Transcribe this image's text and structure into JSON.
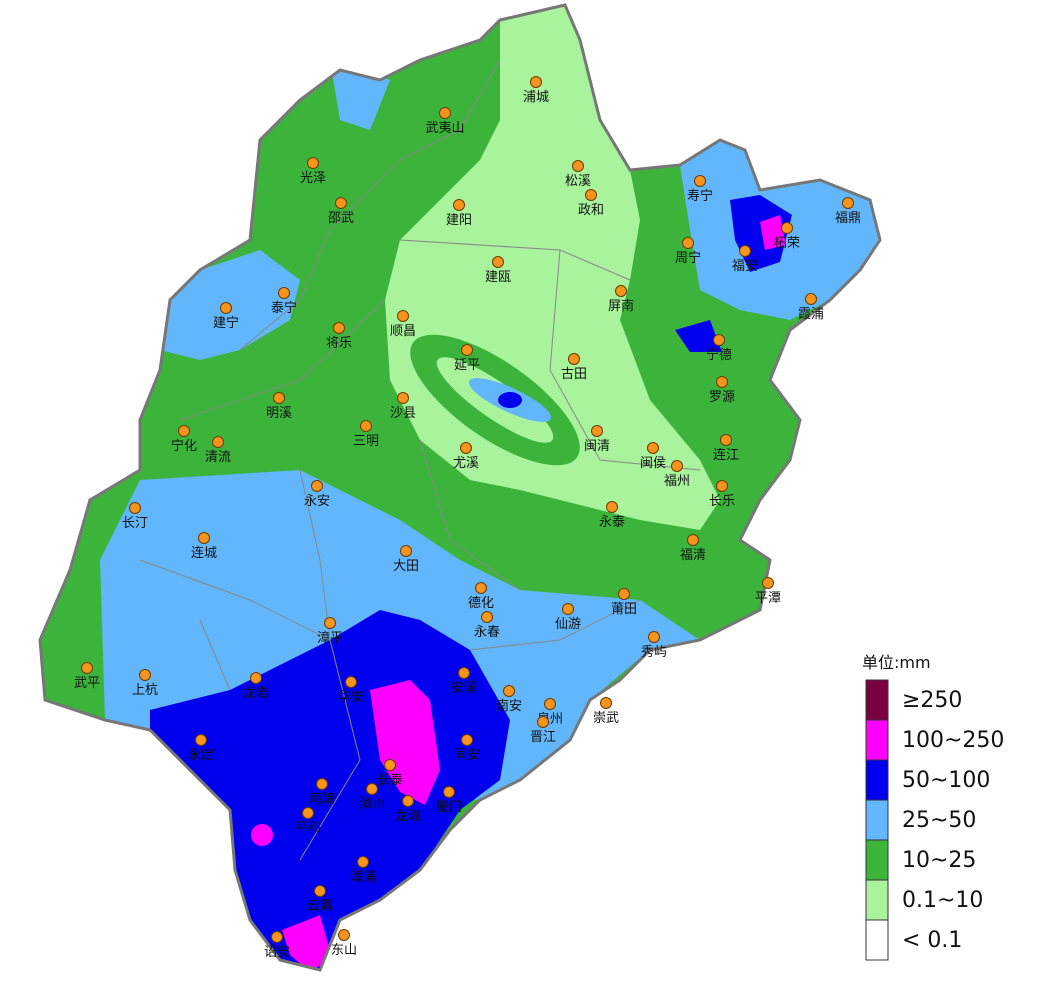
{
  "map": {
    "cities": [
      "浦城",
      "武夷山",
      "松溪",
      "光泽",
      "政和",
      "寿宁",
      "邵武",
      "建阳",
      "福鼎",
      "柘荣",
      "周宁",
      "福安",
      "建瓯",
      "屏南",
      "霞浦",
      "建宁",
      "泰宁",
      "顺昌",
      "将乐",
      "宁德",
      "延平",
      "古田",
      "罗源",
      "明溪",
      "沙县",
      "三明",
      "闽清",
      "宁化",
      "清流",
      "连江",
      "闽侯",
      "尤溪",
      "福州",
      "永安",
      "长乐",
      "长汀",
      "永泰",
      "连城",
      "福清",
      "大田",
      "平潭",
      "德化",
      "莆田",
      "仙游",
      "永春",
      "漳平",
      "秀屿",
      "武平",
      "安溪",
      "上杭",
      "龙岩",
      "华安",
      "南安",
      "崇武",
      "泉州",
      "晋江",
      "永定",
      "同安",
      "长泰",
      "厦门",
      "南靖",
      "漳州",
      "龙海",
      "平和",
      "漳浦",
      "云霄",
      "东山",
      "诏安"
    ],
    "legend": {
      "title": "单位:mm",
      "items": [
        {
          "label": "≥250",
          "color": "#7a0040"
        },
        {
          "label": "100~250",
          "color": "#ff00ff"
        },
        {
          "label": "50~100",
          "color": "#0000ee"
        },
        {
          "label": "25~50",
          "color": "#62b6fb"
        },
        {
          "label": "10~25",
          "color": "#3cb43c"
        },
        {
          "label": "0.1~10",
          "color": "#a8f39c"
        },
        {
          "label": "< 0.1",
          "color": "#ffffff"
        }
      ]
    }
  }
}
